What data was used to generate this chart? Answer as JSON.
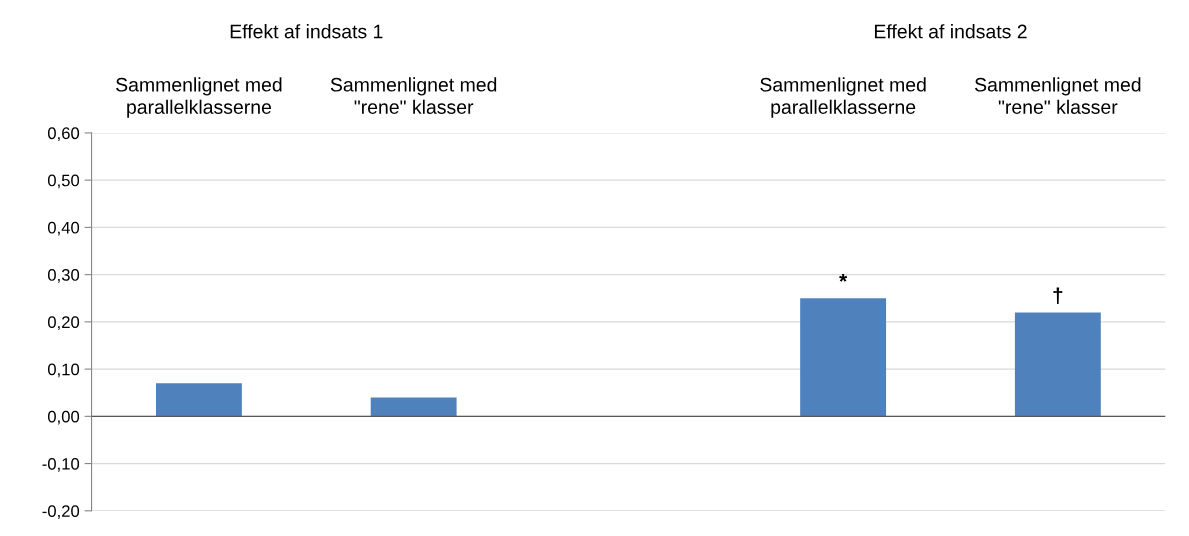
{
  "chart_data": {
    "type": "bar",
    "categories": [
      "Sammenlignet med\nparallelklasserne",
      "Sammenlignet med\n\"rene\" klasser",
      null,
      "Sammenlignet med\nparallelklasserne",
      "Sammenlignet med\n\"rene\" klasser"
    ],
    "values": [
      0.07,
      0.04,
      null,
      0.25,
      0.22
    ],
    "color": "#4f81bd",
    "ylim": [
      -0.2,
      0.6
    ],
    "yticks": [
      {
        "value": -0.2,
        "label": "-0,20"
      },
      {
        "value": -0.1,
        "label": "-0,10"
      },
      {
        "value": 0,
        "label": "0,00"
      },
      {
        "value": 0.1,
        "label": "0,10"
      },
      {
        "value": 0.2,
        "label": "0,20"
      },
      {
        "value": 0.3,
        "label": "0,30"
      },
      {
        "value": 0.4,
        "label": "0,40"
      },
      {
        "value": 0.5,
        "label": "0,50"
      },
      {
        "value": 0.6,
        "label": "0,60"
      }
    ],
    "grid": "y",
    "annotations": [
      "Effekt af indsats 1",
      "Effekt af indsats 2",
      "*",
      "†"
    ]
  }
}
